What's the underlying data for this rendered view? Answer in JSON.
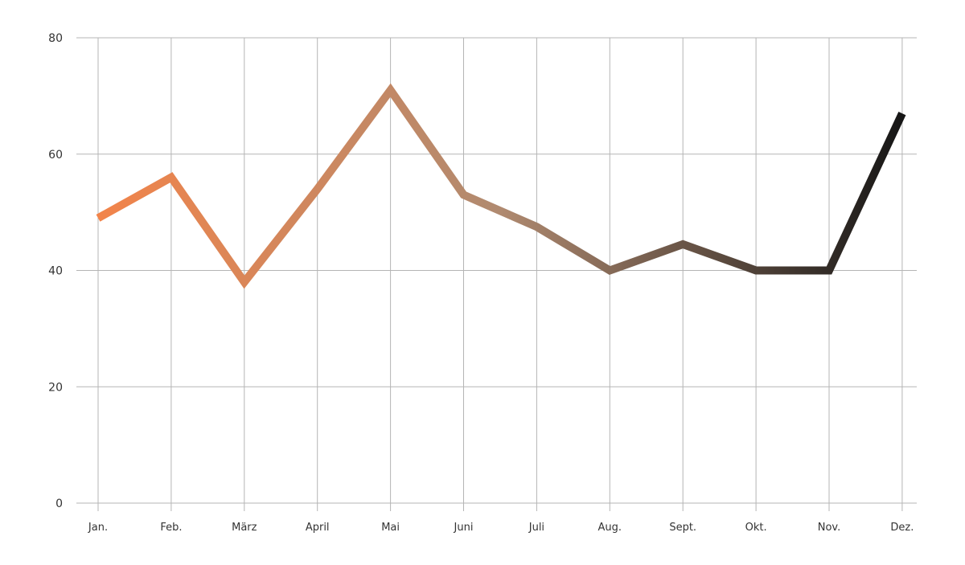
{
  "chart_data": {
    "type": "line",
    "title": "",
    "xlabel": "",
    "ylabel": "",
    "categories": [
      "Jan.",
      "Feb.",
      "März",
      "April",
      "Mai",
      "Juni",
      "Juli",
      "Aug.",
      "Sept.",
      "Okt.",
      "Nov.",
      "Dez."
    ],
    "series": [
      {
        "name": "",
        "values": [
          49,
          56,
          38,
          54,
          71,
          53,
          47.5,
          40,
          44.5,
          40,
          40,
          67
        ]
      }
    ],
    "ylim": [
      0,
      80
    ],
    "yticks": [
      0,
      20,
      40,
      60,
      80
    ],
    "grid": true,
    "legend": "none",
    "colors": {
      "gradient_start": "#f2844a",
      "gradient_mid": "#b08a70",
      "gradient_end": "#161616",
      "grid": "#b5b5b5"
    }
  }
}
